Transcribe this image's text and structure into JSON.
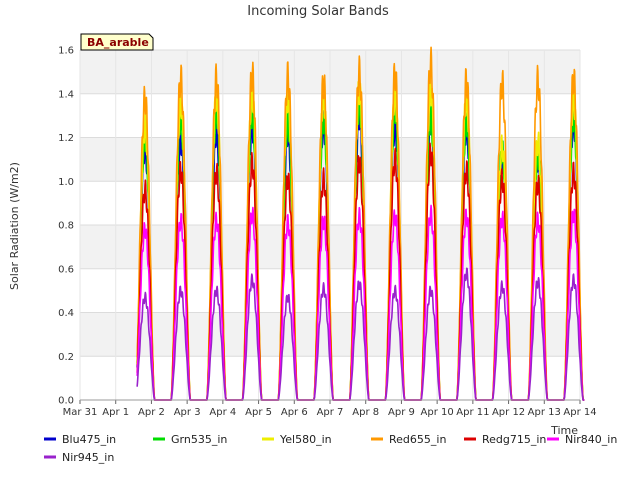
{
  "chart_data": {
    "type": "line",
    "title": "Incoming Solar Bands",
    "xlabel": "Time",
    "ylabel": "Solar Radiation (W/m2)",
    "site_label": "BA_arable",
    "x_ticks": [
      "Mar 31",
      "Apr 1",
      "Apr 2",
      "Apr 3",
      "Apr 4",
      "Apr 5",
      "Apr 6",
      "Apr 7",
      "Apr 8",
      "Apr 9",
      "Apr 10",
      "Apr 11",
      "Apr 12",
      "Apr 13",
      "Apr 14"
    ],
    "x_range_days": [
      0,
      14
    ],
    "y_ticks": [
      "0.0",
      "0.2",
      "0.4",
      "0.6",
      "0.8",
      "1.0",
      "1.2",
      "1.4",
      "1.6"
    ],
    "ylim": [
      0,
      1.6
    ],
    "grid": true,
    "legend_position": "bottom",
    "day_centers": [
      1.82,
      2.82,
      3.82,
      4.82,
      5.82,
      6.82,
      7.82,
      8.82,
      9.82,
      10.82,
      11.82,
      12.82,
      13.82
    ],
    "series": [
      {
        "name": "Blu475_in",
        "color": "#0000cc",
        "peaks": [
          1.15,
          1.18,
          1.22,
          1.25,
          1.22,
          1.26,
          1.3,
          1.25,
          1.28,
          1.24,
          1.1,
          1.1,
          1.27
        ]
      },
      {
        "name": "Grn535_in",
        "color": "#00dd00",
        "peaks": [
          1.2,
          1.29,
          1.32,
          1.31,
          1.27,
          1.28,
          1.36,
          1.33,
          1.29,
          1.27,
          1.14,
          1.12,
          1.29
        ]
      },
      {
        "name": "Yel580_in",
        "color": "#eeee00",
        "peaks": [
          1.25,
          1.36,
          1.39,
          1.4,
          1.38,
          1.39,
          1.42,
          1.4,
          1.42,
          1.38,
          1.16,
          1.18,
          1.38
        ]
      },
      {
        "name": "Red655_in",
        "color": "#ff9900",
        "peaks": [
          1.38,
          1.47,
          1.47,
          1.49,
          1.48,
          1.45,
          1.5,
          1.49,
          1.54,
          1.46,
          1.45,
          1.46,
          1.47
        ]
      },
      {
        "name": "Redg715_in",
        "color": "#dd0000",
        "peaks": [
          0.96,
          1.05,
          1.04,
          1.08,
          1.01,
          1.01,
          1.09,
          1.1,
          1.13,
          1.05,
          1.01,
          0.99,
          1.04
        ]
      },
      {
        "name": "Nir840_in",
        "color": "#ff00ff",
        "peaks": [
          0.78,
          0.82,
          0.82,
          0.85,
          0.81,
          0.82,
          0.84,
          0.84,
          0.85,
          0.84,
          0.83,
          0.82,
          0.85
        ]
      },
      {
        "name": "Nir945_in",
        "color": "#9922cc",
        "peaks": [
          0.47,
          0.5,
          0.5,
          0.55,
          0.47,
          0.51,
          0.53,
          0.5,
          0.5,
          0.58,
          0.52,
          0.54,
          0.55
        ]
      }
    ]
  }
}
